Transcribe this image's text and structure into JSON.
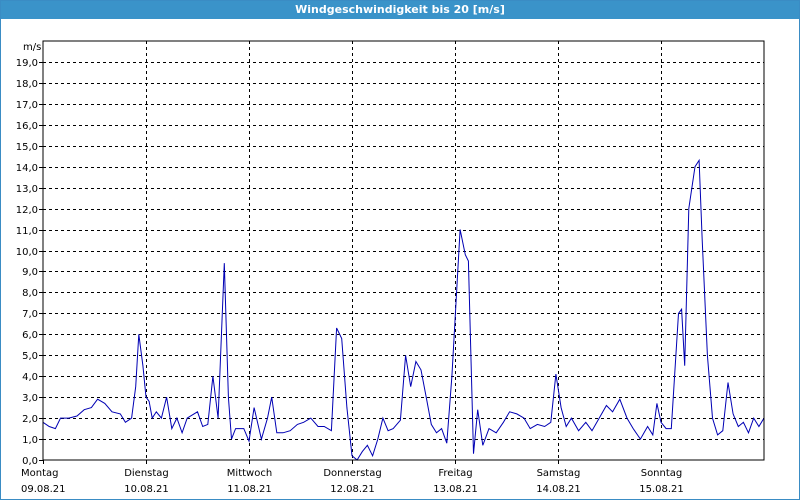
{
  "window": {
    "title": "Windgeschwindigkeit bis 20 [m/s]"
  },
  "colors": {
    "titlebar": "#3a93c9",
    "series": "#0000b4",
    "grid": "#000000"
  },
  "chart_data": {
    "type": "line",
    "title": "Windgeschwindigkeit bis 20 [m/s]",
    "ylabel": "m/s",
    "xlabel": "",
    "ylim": [
      0,
      20
    ],
    "xlim": [
      0,
      7
    ],
    "grid": true,
    "y_ticks": [
      "0,0",
      "1,0",
      "2,0",
      "3,0",
      "4,0",
      "5,0",
      "6,0",
      "7,0",
      "8,0",
      "9,0",
      "10,0",
      "11,0",
      "12,0",
      "13,0",
      "14,0",
      "15,0",
      "16,0",
      "17,0",
      "18,0",
      "19,0"
    ],
    "x_ticks": [
      {
        "day": "Montag",
        "date": "09.08.21"
      },
      {
        "day": "Dienstag",
        "date": "10.08.21"
      },
      {
        "day": "Mittwoch",
        "date": "11.08.21"
      },
      {
        "day": "Donnerstag",
        "date": "12.08.21"
      },
      {
        "day": "Freitag",
        "date": "13.08.21"
      },
      {
        "day": "Samstag",
        "date": "14.08.21"
      },
      {
        "day": "Sonntag",
        "date": "15.08.21"
      }
    ],
    "series": [
      {
        "values": [
          [
            0.0,
            1.8
          ],
          [
            0.06,
            1.6
          ],
          [
            0.12,
            1.5
          ],
          [
            0.17,
            2.0
          ],
          [
            0.25,
            2.0
          ],
          [
            0.33,
            2.1
          ],
          [
            0.4,
            2.4
          ],
          [
            0.47,
            2.5
          ],
          [
            0.53,
            2.9
          ],
          [
            0.6,
            2.7
          ],
          [
            0.67,
            2.3
          ],
          [
            0.75,
            2.2
          ],
          [
            0.8,
            1.8
          ],
          [
            0.86,
            2.0
          ],
          [
            0.9,
            3.5
          ],
          [
            0.93,
            6.0
          ],
          [
            0.97,
            4.5
          ],
          [
            1.0,
            3.0
          ],
          [
            1.03,
            2.8
          ],
          [
            1.06,
            2.0
          ],
          [
            1.1,
            2.3
          ],
          [
            1.15,
            2.0
          ],
          [
            1.2,
            3.0
          ],
          [
            1.25,
            1.5
          ],
          [
            1.3,
            2.0
          ],
          [
            1.35,
            1.3
          ],
          [
            1.4,
            2.0
          ],
          [
            1.5,
            2.3
          ],
          [
            1.55,
            1.6
          ],
          [
            1.6,
            1.7
          ],
          [
            1.65,
            4.0
          ],
          [
            1.7,
            2.0
          ],
          [
            1.76,
            9.4
          ],
          [
            1.8,
            3.0
          ],
          [
            1.83,
            1.0
          ],
          [
            1.87,
            1.5
          ],
          [
            1.95,
            1.5
          ],
          [
            2.0,
            0.9
          ],
          [
            2.05,
            2.5
          ],
          [
            2.12,
            1.0
          ],
          [
            2.18,
            2.0
          ],
          [
            2.22,
            3.0
          ],
          [
            2.27,
            1.3
          ],
          [
            2.33,
            1.3
          ],
          [
            2.4,
            1.4
          ],
          [
            2.47,
            1.7
          ],
          [
            2.53,
            1.8
          ],
          [
            2.6,
            2.0
          ],
          [
            2.67,
            1.6
          ],
          [
            2.73,
            1.6
          ],
          [
            2.8,
            1.4
          ],
          [
            2.85,
            6.3
          ],
          [
            2.9,
            5.8
          ],
          [
            2.95,
            2.5
          ],
          [
            3.0,
            0.2
          ],
          [
            3.05,
            0.0
          ],
          [
            3.1,
            0.4
          ],
          [
            3.15,
            0.7
          ],
          [
            3.2,
            0.2
          ],
          [
            3.25,
            1.0
          ],
          [
            3.3,
            2.0
          ],
          [
            3.35,
            1.4
          ],
          [
            3.4,
            1.5
          ],
          [
            3.47,
            1.9
          ],
          [
            3.52,
            5.0
          ],
          [
            3.57,
            3.5
          ],
          [
            3.62,
            4.7
          ],
          [
            3.67,
            4.3
          ],
          [
            3.72,
            3.0
          ],
          [
            3.77,
            1.7
          ],
          [
            3.82,
            1.3
          ],
          [
            3.87,
            1.5
          ],
          [
            3.92,
            0.8
          ],
          [
            3.97,
            4.0
          ],
          [
            4.05,
            11.0
          ],
          [
            4.1,
            9.8
          ],
          [
            4.13,
            9.5
          ],
          [
            4.18,
            0.3
          ],
          [
            4.22,
            2.4
          ],
          [
            4.27,
            0.7
          ],
          [
            4.33,
            1.5
          ],
          [
            4.4,
            1.3
          ],
          [
            4.47,
            1.8
          ],
          [
            4.53,
            2.3
          ],
          [
            4.6,
            2.2
          ],
          [
            4.67,
            2.0
          ],
          [
            4.73,
            1.5
          ],
          [
            4.8,
            1.7
          ],
          [
            4.87,
            1.6
          ],
          [
            4.93,
            1.8
          ],
          [
            4.98,
            4.1
          ],
          [
            5.03,
            2.5
          ],
          [
            5.08,
            1.6
          ],
          [
            5.13,
            2.0
          ],
          [
            5.2,
            1.4
          ],
          [
            5.27,
            1.8
          ],
          [
            5.33,
            1.4
          ],
          [
            5.4,
            2.0
          ],
          [
            5.47,
            2.6
          ],
          [
            5.53,
            2.3
          ],
          [
            5.6,
            2.9
          ],
          [
            5.67,
            2.0
          ],
          [
            5.73,
            1.5
          ],
          [
            5.8,
            1.0
          ],
          [
            5.87,
            1.6
          ],
          [
            5.92,
            1.2
          ],
          [
            5.96,
            2.7
          ],
          [
            6.0,
            1.8
          ],
          [
            6.05,
            1.5
          ],
          [
            6.1,
            1.5
          ],
          [
            6.17,
            7.0
          ],
          [
            6.2,
            7.2
          ],
          [
            6.23,
            4.5
          ],
          [
            6.27,
            12.0
          ],
          [
            6.33,
            14.0
          ],
          [
            6.37,
            14.3
          ],
          [
            6.4,
            10.5
          ],
          [
            6.45,
            5.0
          ],
          [
            6.5,
            2.0
          ],
          [
            6.55,
            1.2
          ],
          [
            6.6,
            1.4
          ],
          [
            6.65,
            3.7
          ],
          [
            6.7,
            2.2
          ],
          [
            6.75,
            1.6
          ],
          [
            6.8,
            1.8
          ],
          [
            6.85,
            1.3
          ],
          [
            6.9,
            2.0
          ],
          [
            6.95,
            1.6
          ],
          [
            7.0,
            2.0
          ]
        ]
      }
    ]
  }
}
